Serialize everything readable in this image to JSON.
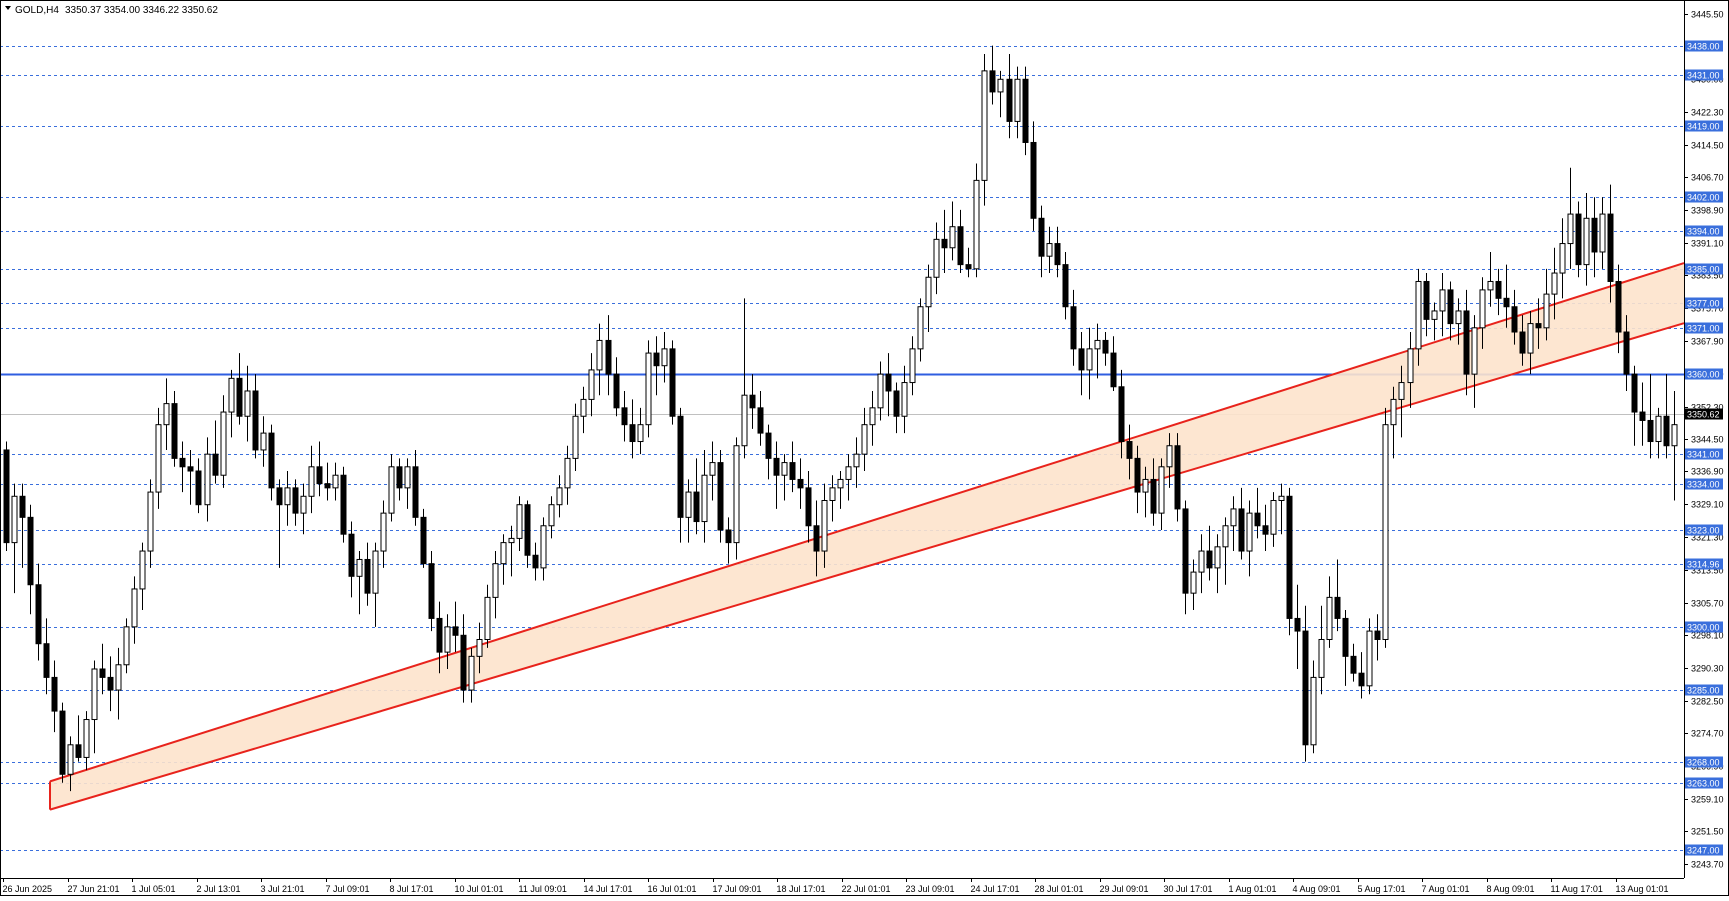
{
  "header": {
    "symbol_timeframe": "GOLD,H4",
    "ohlc": "3350.37 3354.00 3346.22 3350.62"
  },
  "current_price": "3350.62",
  "colors": {
    "level_line": "#3a6fdc",
    "level_label_bg": "#3a6fdc",
    "resistance_line": "#2f5ee0",
    "channel_border": "#e8231c",
    "channel_fill": "#fde3cc",
    "bull_fill": "#ffffff",
    "bear_fill": "#000000",
    "axis": "#000000"
  },
  "chart_data": {
    "type": "candlestick",
    "title": "GOLD,H4",
    "y_scale": {
      "min": 3243.7,
      "max": 3445.5
    },
    "y_ticks": [
      "3445.50",
      "3430.00",
      "3422.30",
      "3414.50",
      "3406.70",
      "3398.90",
      "3391.10",
      "3383.50",
      "3375.70",
      "3367.90",
      "3360.10",
      "3352.30",
      "3344.50",
      "3336.90",
      "3329.10",
      "3321.30",
      "3313.50",
      "3305.70",
      "3298.10",
      "3290.30",
      "3282.50",
      "3274.70",
      "3266.90",
      "3259.10",
      "3251.50",
      "3243.70"
    ],
    "x_labels": [
      "26 Jun 2025",
      "27 Jun 21:01",
      "1 Jul 05:01",
      "2 Jul 13:01",
      "3 Jul 21:01",
      "7 Jul 09:01",
      "8 Jul 17:01",
      "10 Jul 01:01",
      "11 Jul 09:01",
      "14 Jul 17:01",
      "16 Jul 01:01",
      "17 Jul 09:01",
      "18 Jul 17:01",
      "22 Jul 01:01",
      "23 Jul 09:01",
      "24 Jul 17:01",
      "28 Jul 01:01",
      "29 Jul 09:01",
      "30 Jul 17:01",
      "1 Aug 01:01",
      "4 Aug 09:01",
      "5 Aug 17:01",
      "7 Aug 01:01",
      "8 Aug 09:01",
      "11 Aug 17:01",
      "13 Aug 01:01"
    ],
    "levels": [
      "3438.00",
      "3431.00",
      "3419.00",
      "3402.00",
      "3394.00",
      "3385.00",
      "3377.00",
      "3371.00",
      "3341.00",
      "3334.00",
      "3323.00",
      "3314.96",
      "3300.00",
      "3285.00",
      "3268.00",
      "3263.00",
      "3247.00"
    ],
    "resistance_level": "3360.00",
    "channel": {
      "upper": {
        "start_index": 0,
        "start": 3260.0,
        "end_index": 202,
        "end": 3382.0
      },
      "lower": {
        "start_index": 0,
        "start": 3253.5,
        "end_index": 202,
        "end": 3368.0
      }
    },
    "candles": [
      [
        3342,
        3344,
        3318,
        3320
      ],
      [
        3320,
        3334,
        3308,
        3331
      ],
      [
        3331,
        3334,
        3314,
        3326
      ],
      [
        3326,
        3329,
        3303,
        3310
      ],
      [
        3310,
        3315,
        3292,
        3296
      ],
      [
        3296,
        3302,
        3284,
        3288
      ],
      [
        3288,
        3292,
        3275,
        3280
      ],
      [
        3280,
        3282,
        3263,
        3265
      ],
      [
        3265,
        3274,
        3261,
        3272
      ],
      [
        3272,
        3279,
        3268,
        3269
      ],
      [
        3269,
        3280,
        3266,
        3278
      ],
      [
        3278,
        3292,
        3270,
        3290
      ],
      [
        3290,
        3296,
        3284,
        3288
      ],
      [
        3288,
        3293,
        3280,
        3285
      ],
      [
        3285,
        3295,
        3278,
        3291
      ],
      [
        3291,
        3302,
        3289,
        3300
      ],
      [
        3300,
        3312,
        3296,
        3309
      ],
      [
        3309,
        3320,
        3304,
        3318
      ],
      [
        3318,
        3335,
        3314,
        3332
      ],
      [
        3332,
        3352,
        3328,
        3348
      ],
      [
        3348,
        3359,
        3342,
        3353
      ],
      [
        3353,
        3356,
        3338,
        3340
      ],
      [
        3340,
        3344,
        3332,
        3338
      ],
      [
        3338,
        3342,
        3329,
        3337
      ],
      [
        3337,
        3340,
        3327,
        3329
      ],
      [
        3329,
        3345,
        3325,
        3341
      ],
      [
        3341,
        3349,
        3334,
        3336
      ],
      [
        3336,
        3355,
        3333,
        3351
      ],
      [
        3351,
        3361,
        3345,
        3359
      ],
      [
        3359,
        3365,
        3348,
        3350
      ],
      [
        3350,
        3362,
        3344,
        3356
      ],
      [
        3356,
        3360,
        3340,
        3342
      ],
      [
        3342,
        3350,
        3338,
        3346
      ],
      [
        3346,
        3348,
        3330,
        3333
      ],
      [
        3333,
        3335,
        3314,
        3329
      ],
      [
        3329,
        3337,
        3324,
        3333
      ],
      [
        3333,
        3335,
        3324,
        3327
      ],
      [
        3327,
        3334,
        3322,
        3331
      ],
      [
        3331,
        3343,
        3327,
        3338
      ],
      [
        3338,
        3344,
        3331,
        3334
      ],
      [
        3334,
        3339,
        3330,
        3333
      ],
      [
        3333,
        3339,
        3330,
        3336
      ],
      [
        3336,
        3338,
        3320,
        3322
      ],
      [
        3322,
        3325,
        3307,
        3312
      ],
      [
        3312,
        3318,
        3303,
        3316
      ],
      [
        3316,
        3320,
        3305,
        3308
      ],
      [
        3308,
        3320,
        3300,
        3318
      ],
      [
        3318,
        3330,
        3314,
        3327
      ],
      [
        3327,
        3341,
        3325,
        3338
      ],
      [
        3338,
        3340,
        3330,
        3333
      ],
      [
        3333,
        3340,
        3328,
        3338
      ],
      [
        3338,
        3342,
        3324,
        3326
      ],
      [
        3326,
        3328,
        3314,
        3315
      ],
      [
        3315,
        3318,
        3299,
        3302
      ],
      [
        3302,
        3306,
        3289,
        3294
      ],
      [
        3294,
        3303,
        3290,
        3300
      ],
      [
        3300,
        3306,
        3294,
        3298
      ],
      [
        3298,
        3303,
        3282,
        3285
      ],
      [
        3285,
        3295,
        3282,
        3293
      ],
      [
        3293,
        3301,
        3289,
        3297
      ],
      [
        3297,
        3310,
        3295,
        3307
      ],
      [
        3307,
        3318,
        3302,
        3315
      ],
      [
        3315,
        3322,
        3310,
        3320
      ],
      [
        3320,
        3324,
        3312,
        3321
      ],
      [
        3321,
        3331,
        3318,
        3329
      ],
      [
        3329,
        3330,
        3314,
        3317
      ],
      [
        3317,
        3320,
        3311,
        3314
      ],
      [
        3314,
        3326,
        3311,
        3324
      ],
      [
        3324,
        3331,
        3321,
        3329
      ],
      [
        3329,
        3336,
        3326,
        3333
      ],
      [
        3333,
        3343,
        3329,
        3340
      ],
      [
        3340,
        3353,
        3337,
        3350
      ],
      [
        3350,
        3357,
        3346,
        3354
      ],
      [
        3354,
        3365,
        3350,
        3361
      ],
      [
        3361,
        3372,
        3355,
        3368
      ],
      [
        3368,
        3374,
        3355,
        3360
      ],
      [
        3360,
        3364,
        3350,
        3352
      ],
      [
        3352,
        3356,
        3344,
        3348
      ],
      [
        3348,
        3354,
        3340,
        3344
      ],
      [
        3344,
        3352,
        3341,
        3348
      ],
      [
        3348,
        3368,
        3345,
        3365
      ],
      [
        3365,
        3369,
        3355,
        3362
      ],
      [
        3362,
        3370,
        3358,
        3366
      ],
      [
        3366,
        3368,
        3348,
        3350
      ],
      [
        3350,
        3352,
        3320,
        3326
      ],
      [
        3326,
        3335,
        3320,
        3332
      ],
      [
        3332,
        3340,
        3322,
        3325
      ],
      [
        3325,
        3342,
        3320,
        3336
      ],
      [
        3336,
        3344,
        3330,
        3339
      ],
      [
        3339,
        3342,
        3320,
        3323
      ],
      [
        3323,
        3326,
        3315,
        3320
      ],
      [
        3320,
        3345,
        3316,
        3343
      ],
      [
        3343,
        3378,
        3340,
        3355
      ],
      [
        3355,
        3360,
        3347,
        3352
      ],
      [
        3352,
        3356,
        3343,
        3346
      ],
      [
        3346,
        3348,
        3335,
        3340
      ],
      [
        3340,
        3344,
        3328,
        3336
      ],
      [
        3336,
        3341,
        3330,
        3339
      ],
      [
        3339,
        3344,
        3332,
        3335
      ],
      [
        3335,
        3340,
        3328,
        3333
      ],
      [
        3333,
        3337,
        3320,
        3324
      ],
      [
        3324,
        3330,
        3312,
        3318
      ],
      [
        3318,
        3334,
        3314,
        3330
      ],
      [
        3330,
        3336,
        3325,
        3333
      ],
      [
        3333,
        3337,
        3328,
        3335
      ],
      [
        3335,
        3341,
        3330,
        3338
      ],
      [
        3338,
        3345,
        3333,
        3341
      ],
      [
        3341,
        3352,
        3337,
        3348
      ],
      [
        3348,
        3356,
        3343,
        3352
      ],
      [
        3352,
        3363,
        3349,
        3360
      ],
      [
        3360,
        3365,
        3350,
        3356
      ],
      [
        3356,
        3358,
        3346,
        3350
      ],
      [
        3350,
        3362,
        3346,
        3358
      ],
      [
        3358,
        3369,
        3355,
        3366
      ],
      [
        3366,
        3378,
        3363,
        3376
      ],
      [
        3376,
        3386,
        3370,
        3383
      ],
      [
        3383,
        3396,
        3379,
        3392
      ],
      [
        3392,
        3399,
        3384,
        3390
      ],
      [
        3390,
        3401,
        3387,
        3395
      ],
      [
        3395,
        3399,
        3384,
        3386
      ],
      [
        3386,
        3390,
        3383,
        3385
      ],
      [
        3385,
        3410,
        3383,
        3406
      ],
      [
        3406,
        3436,
        3400,
        3432
      ],
      [
        3432,
        3438,
        3424,
        3427
      ],
      [
        3427,
        3432,
        3421,
        3430
      ],
      [
        3430,
        3436,
        3416,
        3420
      ],
      [
        3420,
        3433,
        3416,
        3430
      ],
      [
        3430,
        3433,
        3412,
        3415
      ],
      [
        3415,
        3420,
        3394,
        3397
      ],
      [
        3397,
        3400,
        3383,
        3388
      ],
      [
        3388,
        3395,
        3384,
        3391
      ],
      [
        3391,
        3395,
        3383,
        3386
      ],
      [
        3386,
        3389,
        3373,
        3376
      ],
      [
        3376,
        3380,
        3362,
        3366
      ],
      [
        3366,
        3370,
        3355,
        3361
      ],
      [
        3361,
        3371,
        3354,
        3366
      ],
      [
        3366,
        3372,
        3359,
        3368
      ],
      [
        3368,
        3370,
        3362,
        3365
      ],
      [
        3365,
        3369,
        3356,
        3357
      ],
      [
        3357,
        3361,
        3340,
        3344
      ],
      [
        3344,
        3348,
        3335,
        3340
      ],
      [
        3340,
        3343,
        3327,
        3332
      ],
      [
        3332,
        3338,
        3326,
        3335
      ],
      [
        3335,
        3340,
        3324,
        3327
      ],
      [
        3327,
        3340,
        3323,
        3338
      ],
      [
        3338,
        3346,
        3333,
        3343
      ],
      [
        3343,
        3346,
        3325,
        3328
      ],
      [
        3328,
        3330,
        3303,
        3308
      ],
      [
        3308,
        3316,
        3304,
        3313
      ],
      [
        3313,
        3322,
        3308,
        3318
      ],
      [
        3318,
        3324,
        3311,
        3314
      ],
      [
        3314,
        3322,
        3308,
        3319
      ],
      [
        3319,
        3326,
        3310,
        3324
      ],
      [
        3324,
        3331,
        3318,
        3328
      ],
      [
        3328,
        3333,
        3316,
        3318
      ],
      [
        3318,
        3330,
        3312,
        3327
      ],
      [
        3327,
        3333,
        3321,
        3324
      ],
      [
        3324,
        3329,
        3318,
        3322
      ],
      [
        3322,
        3332,
        3319,
        3330
      ],
      [
        3330,
        3334,
        3322,
        3331
      ],
      [
        3331,
        3333,
        3298,
        3302
      ],
      [
        3302,
        3310,
        3290,
        3299
      ],
      [
        3299,
        3305,
        3268,
        3272
      ],
      [
        3272,
        3292,
        3270,
        3288
      ],
      [
        3288,
        3305,
        3284,
        3297
      ],
      [
        3297,
        3312,
        3295,
        3307
      ],
      [
        3307,
        3316,
        3299,
        3302
      ],
      [
        3302,
        3304,
        3286,
        3293
      ],
      [
        3293,
        3296,
        3287,
        3289
      ],
      [
        3289,
        3294,
        3283,
        3286
      ],
      [
        3286,
        3302,
        3284,
        3299
      ],
      [
        3299,
        3303,
        3292,
        3297
      ],
      [
        3297,
        3352,
        3295,
        3348
      ],
      [
        3348,
        3357,
        3340,
        3354
      ],
      [
        3354,
        3362,
        3345,
        3358
      ],
      [
        3358,
        3370,
        3352,
        3366
      ],
      [
        3366,
        3385,
        3362,
        3382
      ],
      [
        3382,
        3384,
        3369,
        3373
      ],
      [
        3373,
        3377,
        3368,
        3375
      ],
      [
        3375,
        3384,
        3369,
        3380
      ],
      [
        3380,
        3382,
        3368,
        3372
      ],
      [
        3372,
        3378,
        3367,
        3375
      ],
      [
        3375,
        3380,
        3355,
        3360
      ],
      [
        3360,
        3374,
        3352,
        3371
      ],
      [
        3371,
        3383,
        3366,
        3380
      ],
      [
        3380,
        3389,
        3376,
        3382
      ],
      [
        3382,
        3385,
        3374,
        3378
      ],
      [
        3378,
        3386,
        3371,
        3376
      ],
      [
        3376,
        3380,
        3367,
        3370
      ],
      [
        3370,
        3374,
        3362,
        3365
      ],
      [
        3365,
        3375,
        3360,
        3372
      ],
      [
        3372,
        3378,
        3366,
        3371
      ],
      [
        3371,
        3385,
        3368,
        3379
      ],
      [
        3379,
        3390,
        3373,
        3384
      ],
      [
        3384,
        3397,
        3378,
        3391
      ],
      [
        3391,
        3409,
        3385,
        3398
      ],
      [
        3398,
        3401,
        3383,
        3386
      ],
      [
        3386,
        3403,
        3381,
        3397
      ],
      [
        3397,
        3402,
        3383,
        3389
      ],
      [
        3389,
        3402,
        3385,
        3398
      ],
      [
        3398,
        3405,
        3377,
        3382
      ],
      [
        3382,
        3386,
        3365,
        3370
      ],
      [
        3370,
        3374,
        3356,
        3360
      ],
      [
        3360,
        3362,
        3343,
        3351
      ],
      [
        3351,
        3358,
        3343,
        3349
      ],
      [
        3349,
        3360,
        3340,
        3344
      ],
      [
        3344,
        3352,
        3340,
        3350
      ],
      [
        3350,
        3360,
        3340,
        3343
      ],
      [
        3343,
        3356,
        3330,
        3348
      ],
      [
        3348,
        3353,
        3342,
        3350
      ],
      [
        3350.37,
        3354,
        3346.22,
        3350.62
      ]
    ]
  }
}
